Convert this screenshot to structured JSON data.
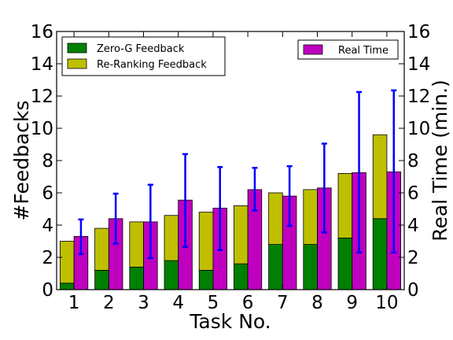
{
  "chart_data": {
    "type": "bar",
    "categories": [
      "1",
      "2",
      "3",
      "4",
      "5",
      "6",
      "7",
      "8",
      "9",
      "10"
    ],
    "xlabel": "Task No.",
    "ylabel_left": "#Feedbacks",
    "ylabel_right": "Real Time (min.)",
    "ylim": [
      0,
      16
    ],
    "yticks": [
      0,
      2,
      4,
      6,
      8,
      10,
      12,
      14,
      16
    ],
    "stacked_series": [
      {
        "name": "Zero-G Feedback",
        "color": "#008000",
        "values": [
          0.4,
          1.2,
          1.4,
          1.8,
          1.2,
          1.6,
          2.8,
          2.8,
          3.2,
          4.4
        ]
      },
      {
        "name": "Re-Ranking Feedback",
        "color": "#bfbf00",
        "values": [
          2.6,
          2.6,
          2.8,
          2.8,
          3.6,
          3.6,
          3.2,
          3.4,
          4.0,
          5.2
        ]
      }
    ],
    "time_series": {
      "name": "Real Time",
      "color": "#bf00bf",
      "values": [
        3.3,
        4.4,
        4.2,
        5.55,
        5.05,
        6.2,
        5.8,
        6.3,
        7.25,
        7.3
      ],
      "error_low": [
        2.2,
        2.85,
        1.95,
        2.65,
        2.45,
        4.9,
        3.95,
        3.55,
        2.3,
        2.3
      ],
      "error_high": [
        4.35,
        5.95,
        6.5,
        8.4,
        7.6,
        7.55,
        7.65,
        9.05,
        12.25,
        12.35
      ],
      "error_color": "#0000ff"
    },
    "legend_left_placement": "top-left",
    "legend_right_placement": "top-right",
    "grid": false
  }
}
